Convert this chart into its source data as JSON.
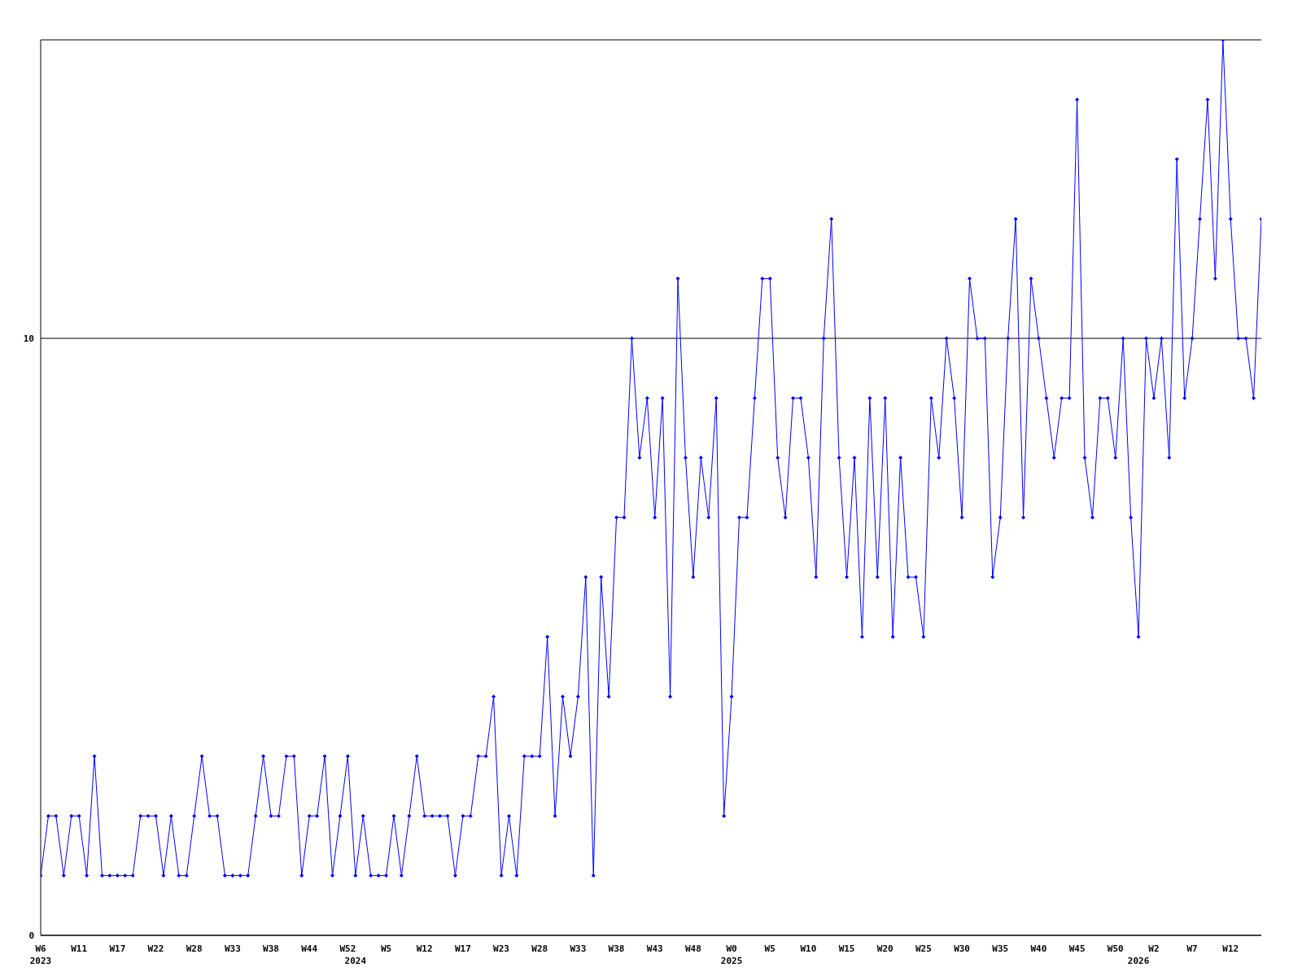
{
  "chart_data": {
    "type": "line",
    "categories": [
      "W6\n2023",
      null,
      null,
      null,
      null,
      "W11",
      null,
      null,
      null,
      null,
      "W17",
      null,
      null,
      null,
      null,
      "W22",
      null,
      null,
      null,
      null,
      "W28",
      null,
      null,
      null,
      null,
      "W33",
      null,
      null,
      null,
      null,
      "W38",
      null,
      null,
      null,
      null,
      "W44",
      null,
      null,
      null,
      null,
      "W52",
      "\n2024",
      null,
      null,
      null,
      "W5",
      null,
      null,
      null,
      null,
      "W12",
      null,
      null,
      null,
      null,
      "W17",
      null,
      null,
      null,
      null,
      "W23",
      null,
      null,
      null,
      null,
      "W28",
      null,
      null,
      null,
      null,
      "W33",
      null,
      null,
      null,
      null,
      "W38",
      null,
      null,
      null,
      null,
      "W43",
      null,
      null,
      null,
      null,
      "W48",
      null,
      null,
      null,
      null,
      "W0\n2025",
      null,
      null,
      null,
      null,
      "W5",
      null,
      null,
      null,
      null,
      "W10",
      null,
      null,
      null,
      null,
      "W15",
      null,
      null,
      null,
      null,
      "W20",
      null,
      null,
      null,
      null,
      "W25",
      null,
      null,
      null,
      null,
      "W30",
      null,
      null,
      null,
      null,
      "W35",
      null,
      null,
      null,
      null,
      "W40",
      null,
      null,
      null,
      null,
      "W45",
      null,
      null,
      null,
      null,
      "W50",
      null,
      null,
      "\n2026",
      null,
      "W2",
      null,
      null,
      null,
      null,
      "W7",
      null,
      null,
      null,
      null,
      "W12",
      null,
      null,
      null,
      null
    ],
    "series": [
      {
        "color": "#0000ff",
        "values": [
          1,
          2,
          2,
          1,
          2,
          2,
          1,
          3,
          1,
          1,
          1,
          1,
          1,
          2,
          2,
          2,
          1,
          2,
          1,
          1,
          2,
          3,
          2,
          2,
          1,
          1,
          1,
          1,
          2,
          3,
          2,
          2,
          3,
          3,
          1,
          2,
          2,
          3,
          1,
          2,
          3,
          1,
          2,
          1,
          1,
          1,
          2,
          1,
          2,
          3,
          2,
          2,
          2,
          2,
          1,
          2,
          2,
          3,
          3,
          4,
          1,
          2,
          1,
          3,
          3,
          3,
          5,
          2,
          4,
          3,
          4,
          6,
          1,
          6,
          4,
          7,
          7,
          10,
          8,
          9,
          7,
          9,
          4,
          11,
          8,
          6,
          8,
          7,
          9,
          2,
          4,
          7,
          7,
          9,
          11,
          11,
          8,
          7,
          9,
          9,
          8,
          6,
          10,
          12,
          8,
          6,
          8,
          5,
          9,
          6,
          9,
          5,
          8,
          6,
          6,
          5,
          9,
          8,
          10,
          9,
          7,
          11,
          10,
          10,
          6,
          7,
          10,
          12,
          7,
          11,
          10,
          9,
          8,
          9,
          9,
          14,
          8,
          7,
          9,
          9,
          8,
          10,
          7,
          5,
          10,
          9,
          10,
          8,
          13,
          9,
          10,
          12,
          14,
          11,
          15,
          12,
          10,
          10,
          9,
          12
        ]
      }
    ],
    "ylim": [
      0,
      15
    ],
    "yticks": [
      0,
      10
    ],
    "grid": "y",
    "marker": "diamond"
  }
}
